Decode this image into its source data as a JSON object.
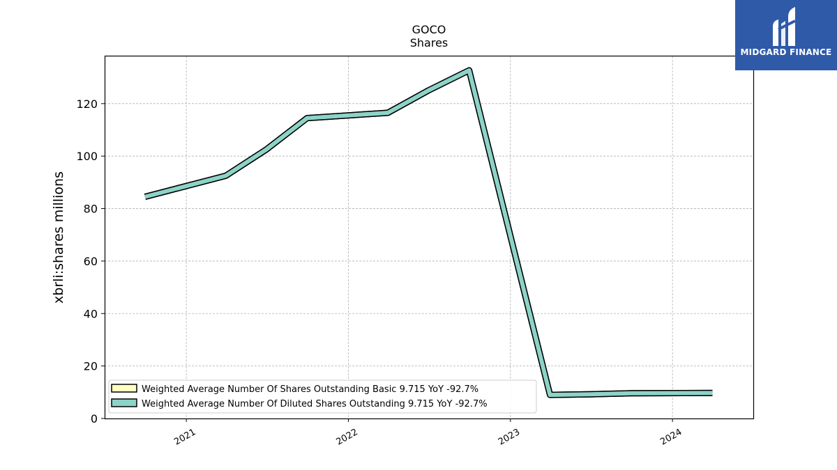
{
  "brand": {
    "name": "MIDGARD FINANCE",
    "icon": "midgard-logo-icon",
    "color": "#2f5aa8"
  },
  "chart_data": {
    "type": "line",
    "title": "GOCO",
    "subtitle": "Shares",
    "xlabel": "",
    "ylabel": "xbrli:shares millions",
    "xlim": [
      "2020-07-01",
      "2024-07-01"
    ],
    "ylim": [
      0,
      138
    ],
    "yticks": [
      0,
      20,
      40,
      60,
      80,
      100,
      120
    ],
    "xticks": [
      "2021",
      "2022",
      "2023",
      "2024"
    ],
    "grid": true,
    "legend_position": "lower-left",
    "series": [
      {
        "name": "Weighted Average Number Of Shares Outstanding Basic  9.715 YoY -92.7%",
        "color": "#ffffc0",
        "x": [
          "2020-09-30",
          "2021-03-31",
          "2021-06-30",
          "2021-09-30",
          "2022-03-31",
          "2022-06-30",
          "2022-09-30",
          "2023-03-31",
          "2023-06-30",
          "2023-09-30",
          "2024-03-31"
        ],
        "values": [
          84.5,
          92.5,
          102.5,
          114.5,
          116.5,
          125,
          132.7,
          9,
          9.2,
          9.6,
          9.7
        ]
      },
      {
        "name": "Weighted Average Number Of Diluted Shares Outstanding  9.715 YoY -92.7%",
        "color": "#8dd3c7",
        "x": [
          "2020-09-30",
          "2021-03-31",
          "2021-06-30",
          "2021-09-30",
          "2022-03-31",
          "2022-06-30",
          "2022-09-30",
          "2023-03-31",
          "2023-06-30",
          "2023-09-30",
          "2024-03-31"
        ],
        "values": [
          84.5,
          92.5,
          102.5,
          114.5,
          116.5,
          125,
          132.7,
          9,
          9.2,
          9.6,
          9.7
        ]
      }
    ]
  }
}
